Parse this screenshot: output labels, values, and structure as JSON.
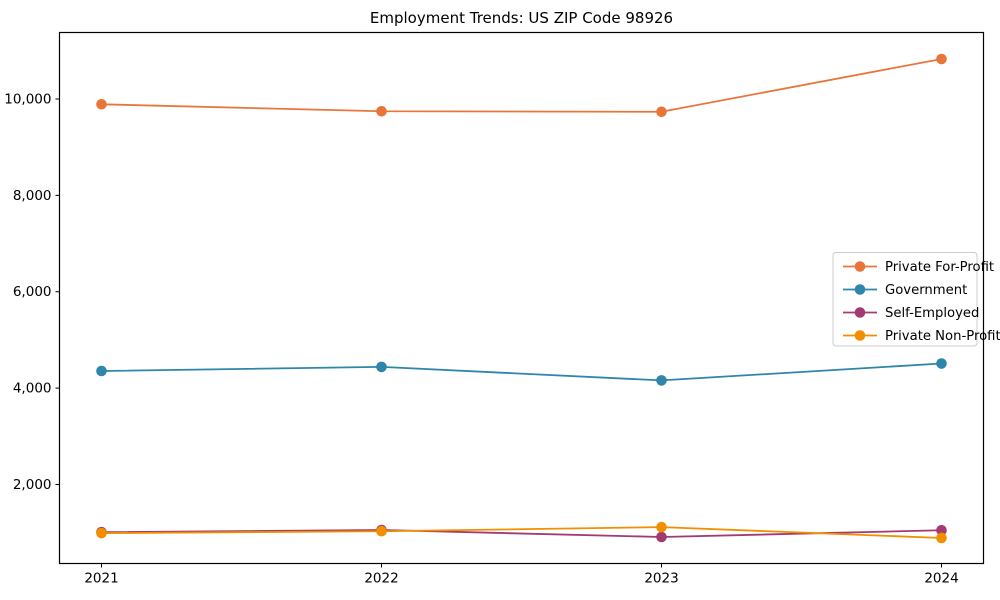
{
  "chart_data": {
    "type": "line",
    "title": "Employment Trends: US ZIP Code 98926",
    "xlabel": "",
    "ylabel": "",
    "grid": false,
    "x": [
      2021,
      2022,
      2023,
      2024
    ],
    "xtick_labels": [
      "2021",
      "2022",
      "2023",
      "2024"
    ],
    "ytick_values": [
      2000,
      4000,
      6000,
      8000,
      10000
    ],
    "ytick_labels": [
      "2,000",
      "4,000",
      "6,000",
      "8,000",
      "10,000"
    ],
    "xlim": [
      2020.85,
      2024.15
    ],
    "ylim": [
      360,
      11380
    ],
    "legend": {
      "position": "center-right",
      "entries": [
        "Private For-Profit",
        "Government",
        "Self-Employed",
        "Private Non-Profit"
      ]
    },
    "series": [
      {
        "name": "Private For-Profit",
        "color": "#e8763b",
        "values": [
          9890,
          9745,
          9735,
          10830
        ]
      },
      {
        "name": "Government",
        "color": "#2e86ab",
        "values": [
          4355,
          4440,
          4160,
          4510
        ]
      },
      {
        "name": "Self-Employed",
        "color": "#a23b72",
        "values": [
          1010,
          1055,
          910,
          1050
        ]
      },
      {
        "name": "Private Non-Profit",
        "color": "#f18f01",
        "values": [
          990,
          1030,
          1115,
          890
        ]
      }
    ],
    "colors": {
      "axis": "#000000",
      "legend_border": "#cccccc",
      "background": "#ffffff"
    }
  }
}
